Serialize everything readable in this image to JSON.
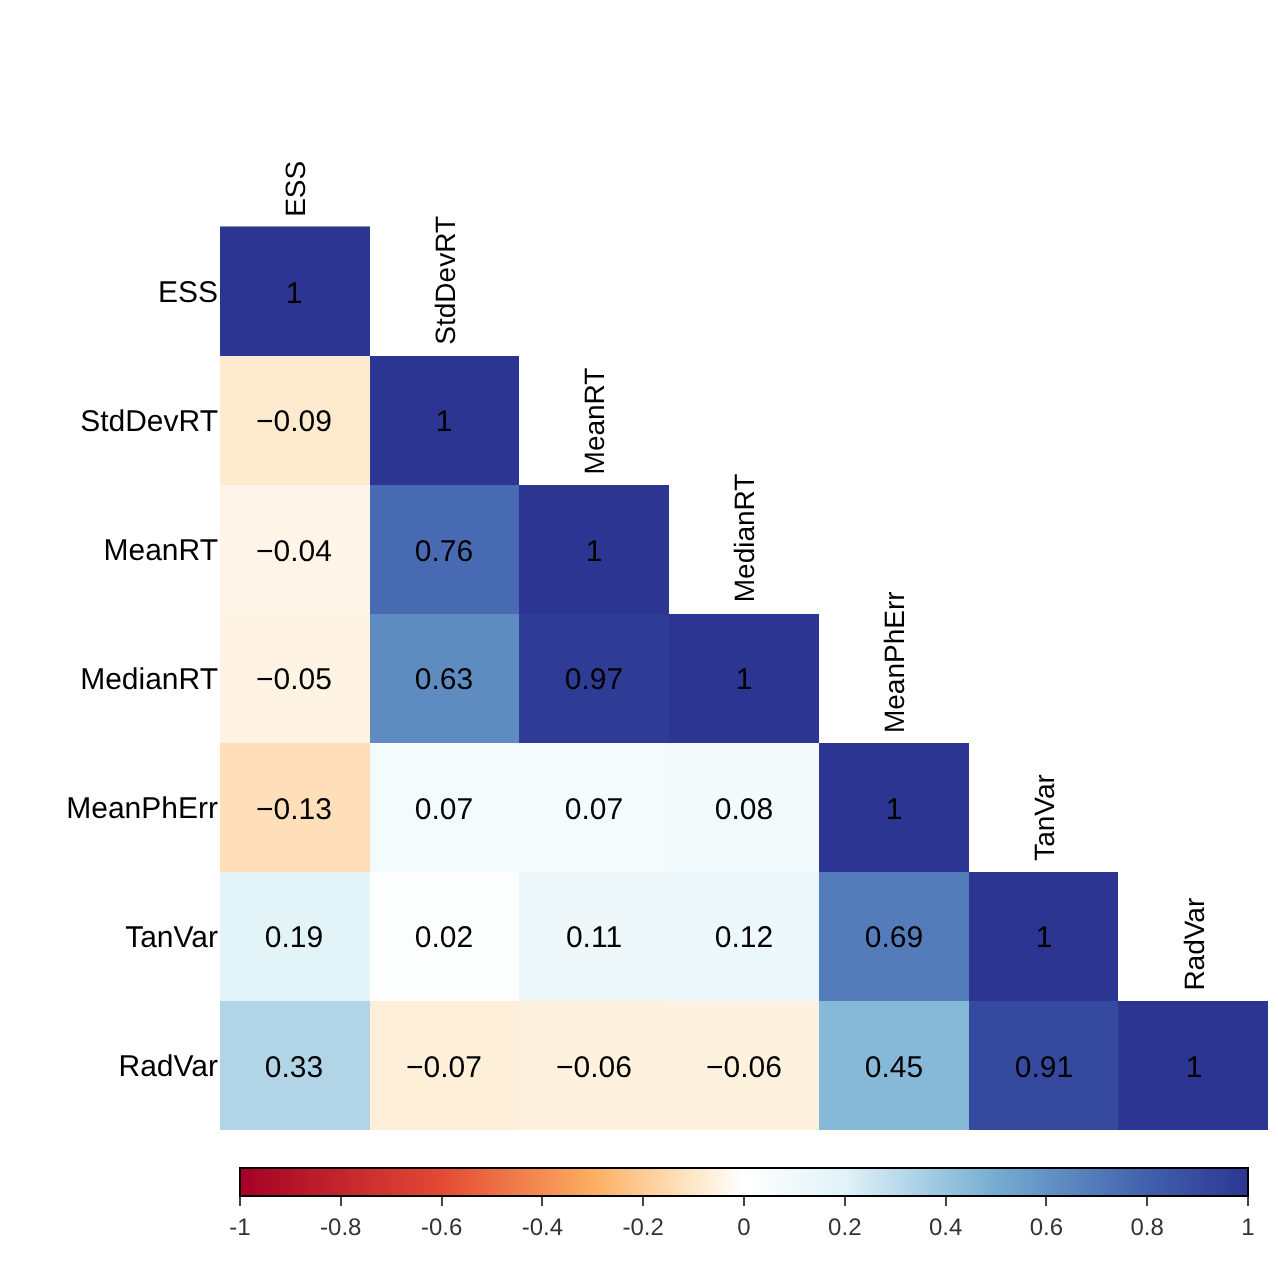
{
  "chart_data": {
    "type": "heatmap",
    "categories": [
      "ESS",
      "StdDevRT",
      "MeanRT",
      "MedianRT",
      "MeanPhErr",
      "TanVar",
      "RadVar"
    ],
    "y_categories": [
      "ESS",
      "StdDevRT",
      "MeanRT",
      "MedianRT",
      "MeanPhErr",
      "TanVar",
      "RadVar"
    ],
    "cells": [
      [
        1,
        null,
        null,
        null,
        null,
        null,
        null
      ],
      [
        -0.09,
        1,
        null,
        null,
        null,
        null,
        null
      ],
      [
        -0.04,
        0.76,
        1,
        null,
        null,
        null,
        null
      ],
      [
        -0.05,
        0.63,
        0.97,
        1,
        null,
        null,
        null
      ],
      [
        -0.13,
        0.07,
        0.07,
        0.08,
        1,
        null,
        null
      ],
      [
        0.19,
        0.02,
        0.11,
        0.12,
        0.69,
        1,
        null
      ],
      [
        0.33,
        -0.07,
        -0.06,
        -0.06,
        0.45,
        0.91,
        1
      ]
    ],
    "data_labels": true,
    "clim": [
      -1,
      1
    ],
    "cticks": [
      -1,
      -0.8,
      -0.6,
      -0.4,
      -0.2,
      0,
      0.2,
      0.4,
      0.6,
      0.8,
      1
    ]
  }
}
